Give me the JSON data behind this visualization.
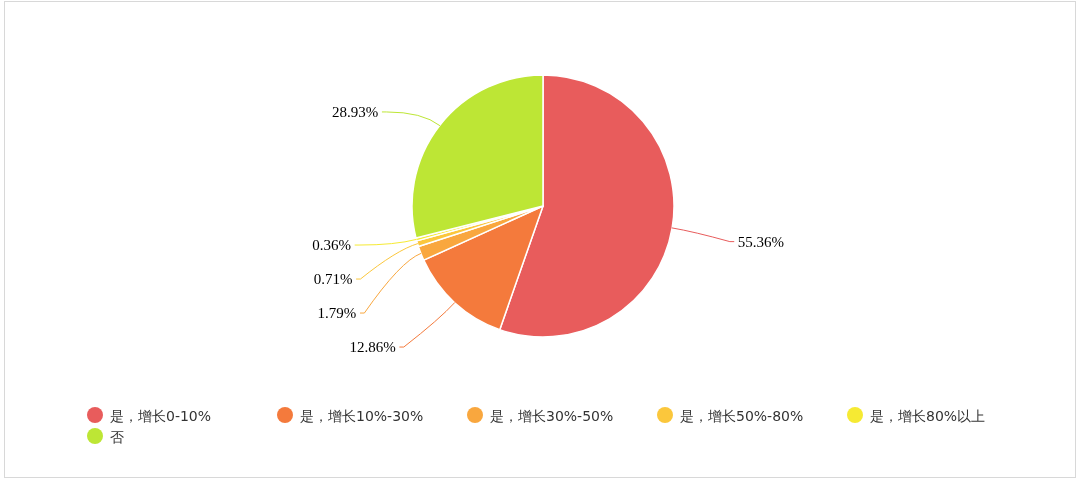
{
  "chart_data": {
    "type": "pie",
    "categories": [
      "是，增长0-10%",
      "是，增长10%-30%",
      "是，增长30%-50%",
      "是，增长50%-80%",
      "是，增长80%以上",
      "否"
    ],
    "values": [
      55.36,
      12.86,
      1.79,
      0.71,
      0.36,
      28.93
    ],
    "value_labels": [
      "55.36%",
      "12.86%",
      "1.79%",
      "0.71%",
      "0.36%",
      "28.93%"
    ],
    "colors": [
      "#e85c5c",
      "#f47a3c",
      "#f9a73e",
      "#fbc73c",
      "#f6ea33",
      "#bde635"
    ],
    "legend": "bottom"
  }
}
